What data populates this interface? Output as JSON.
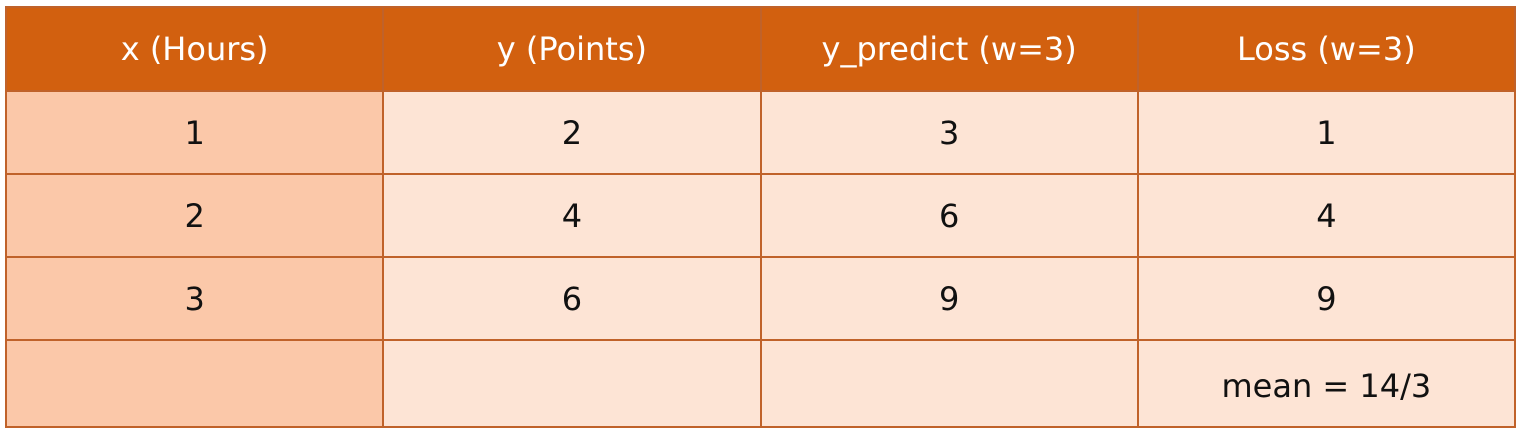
{
  "chart_data": {
    "type": "table",
    "columns": [
      "x (Hours)",
      "y (Points)",
      "y_predict  (w=3)",
      "Loss (w=3)"
    ],
    "rows": [
      [
        "1",
        "2",
        "3",
        "1"
      ],
      [
        "2",
        "4",
        "6",
        "4"
      ],
      [
        "3",
        "6",
        "9",
        "9"
      ],
      [
        "",
        "",
        "",
        "mean = 14/3"
      ]
    ]
  },
  "colors": {
    "header_bg": "#d2600f",
    "header_text": "#ffffff",
    "cell_bg": "#fde4d5",
    "first_col_bg": "#fbc8a9",
    "border": "#c0622a"
  }
}
